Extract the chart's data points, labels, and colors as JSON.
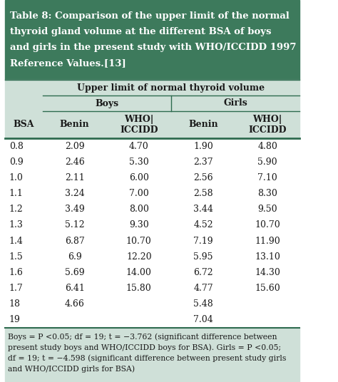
{
  "title_lines": [
    "Table 8: Comparison of the upper limit of the normal",
    "thyroid gland volume at the different BSA of boys",
    "and girls in the present study with WHO/ICCIDD 1997",
    "Reference Values.[13]"
  ],
  "header_main": "Upper limit of normal thyroid volume",
  "header_boys": "Boys",
  "header_girls": "Girls",
  "col_bsa": "BSA",
  "col_benin": "Benin",
  "col_who": "WHO|\nICCIDD",
  "rows": [
    [
      "0.8",
      "2.09",
      "4.70",
      "1.90",
      "4.80"
    ],
    [
      "0.9",
      "2.46",
      "5.30",
      "2.37",
      "5.90"
    ],
    [
      "1.0",
      "2.11",
      "6.00",
      "2.56",
      "7.10"
    ],
    [
      "1.1",
      "3.24",
      "7.00",
      "2.58",
      "8.30"
    ],
    [
      "1.2",
      "3.49",
      "8.00",
      "3.44",
      "9.50"
    ],
    [
      "1.3",
      "5.12",
      "9.30",
      "4.52",
      "10.70"
    ],
    [
      "1.4",
      "6.87",
      "10.70",
      "7.19",
      "11.90"
    ],
    [
      "1.5",
      "6.9",
      "12.20",
      "5.95",
      "13.10"
    ],
    [
      "1.6",
      "5.69",
      "14.00",
      "6.72",
      "14.30"
    ],
    [
      "1.7",
      "6.41",
      "15.80",
      "4.77",
      "15.60"
    ],
    [
      "18",
      "4.66",
      "",
      "5.48",
      ""
    ],
    [
      "19",
      "",
      "",
      "7.04",
      ""
    ]
  ],
  "fn_lines": [
    "Boys = P <0.05; df = 19; t = −3.762 (significant difference between",
    "present study boys and WHO/ICCIDD boys for BSA). Girls = P <0.05;",
    "df = 19; t = −4.598 (significant difference between present study girls",
    "and WHO/ICCIDD girls for BSA)"
  ],
  "title_bg": "#3d7a5c",
  "title_color": "#ffffff",
  "header_bg": "#cfe0d8",
  "body_bg": "#ffffff",
  "footnote_bg": "#cfe0d8",
  "line_color": "#2e6b4f",
  "text_color": "#1a1a1a",
  "font_size_title": 9.5,
  "font_size_header": 9,
  "font_size_body": 9,
  "font_size_footnote": 7.8
}
